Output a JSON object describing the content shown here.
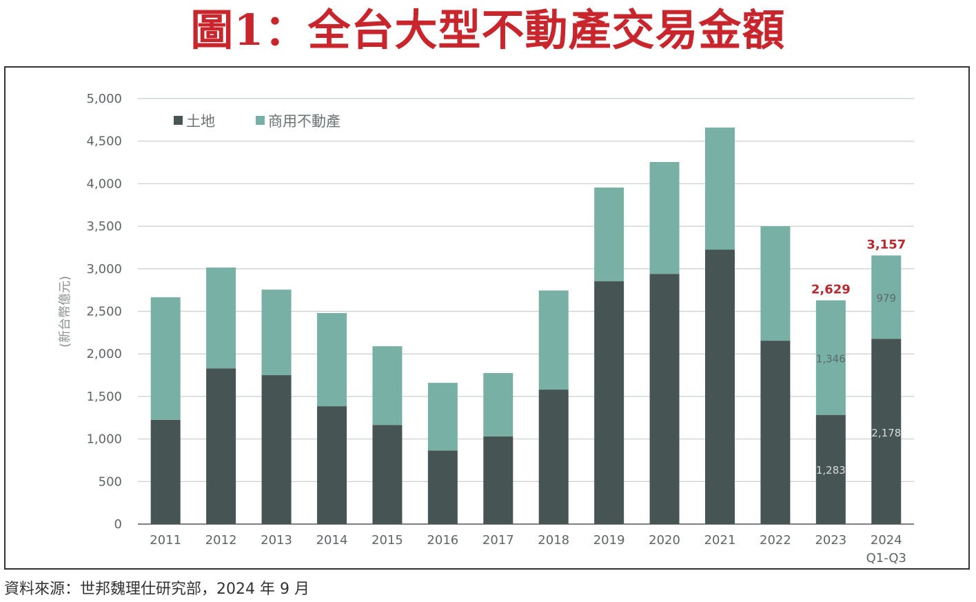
{
  "figure_title": "圖1：全台大型不動產交易金額",
  "source_note": "資料來源：世邦魏理仕研究部，2024 年 9 月",
  "chart_data": {
    "type": "bar",
    "stacked": true,
    "title": "全台大型不動產交易金額",
    "xlabel": "",
    "ylabel": "(新台幣億元)",
    "ylim": [
      0,
      5000
    ],
    "yticks": [
      0,
      500,
      1000,
      1500,
      2000,
      2500,
      3000,
      3500,
      4000,
      4500,
      5000
    ],
    "ytick_labels": [
      "0",
      "500",
      "1,000",
      "1,500",
      "2,000",
      "2,500",
      "3,000",
      "3,500",
      "4,000",
      "4,500",
      "5,000"
    ],
    "grid": true,
    "legend_position": "top-left",
    "categories": [
      "2011",
      "2012",
      "2013",
      "2014",
      "2015",
      "2016",
      "2017",
      "2018",
      "2019",
      "2020",
      "2021",
      "2022",
      "2023",
      "2024"
    ],
    "category_sublabels": [
      "",
      "",
      "",
      "",
      "",
      "",
      "",
      "",
      "",
      "",
      "",
      "",
      "",
      "Q1-Q3"
    ],
    "series": [
      {
        "name": "土地",
        "color": "#475454",
        "values": [
          1225,
          1830,
          1750,
          1385,
          1165,
          865,
          1030,
          1580,
          2855,
          2940,
          3225,
          2155,
          1283,
          2178
        ]
      },
      {
        "name": "商用不動產",
        "color": "#78b0a5",
        "values": [
          1440,
          1185,
          1005,
          1095,
          925,
          795,
          745,
          1165,
          1100,
          1315,
          1435,
          1345,
          1346,
          979
        ]
      }
    ],
    "segment_labels": [
      {
        "category": "2023",
        "series": "土地",
        "text": "1,283"
      },
      {
        "category": "2023",
        "series": "商用不動產",
        "text": "1,346"
      },
      {
        "category": "2024",
        "series": "土地",
        "text": "2,178"
      },
      {
        "category": "2024",
        "series": "商用不動產",
        "text": "979"
      }
    ],
    "total_labels": [
      {
        "category": "2023",
        "text": "2,629"
      },
      {
        "category": "2024",
        "text": "3,157"
      }
    ],
    "label_colors": {
      "total": "#b8282e",
      "on_dark": "#d6dcdc",
      "on_light": "#5a6a6a"
    }
  }
}
